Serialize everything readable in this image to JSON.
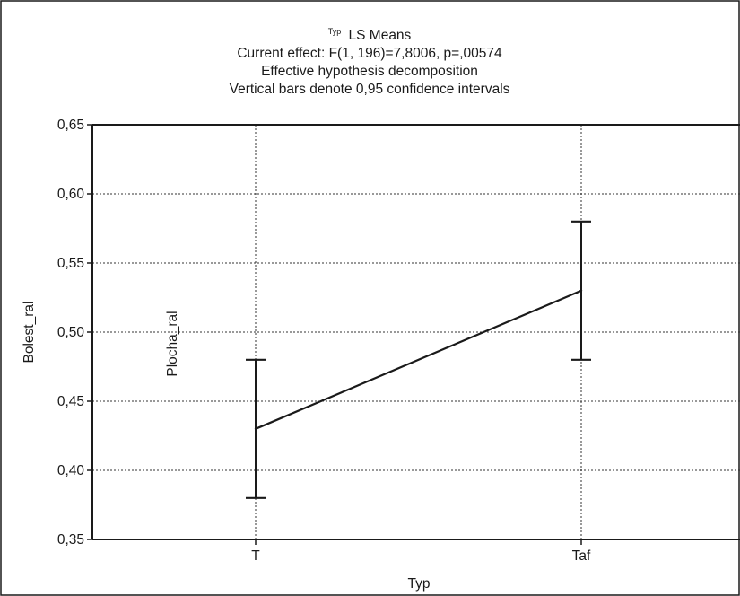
{
  "chart_data": {
    "type": "line",
    "title_superscript": "Typ",
    "title": "LS Means",
    "subtitle_lines": [
      "Current effect: F(1, 196)=7,8006, p=,00574",
      "Effective hypothesis decomposition",
      "Vertical bars denote 0,95 confidence intervals"
    ],
    "xlabel": "Typ",
    "ylabel": "Bolest_ral",
    "inner_label": "Plocha_ral",
    "categories": [
      "T",
      "Taf"
    ],
    "series": [
      {
        "values": [
          0.43,
          0.53
        ],
        "ci_low": [
          0.38,
          0.48
        ],
        "ci_high": [
          0.48,
          0.58
        ]
      }
    ],
    "ylim": [
      0.35,
      0.65
    ],
    "yticks": [
      0.35,
      0.4,
      0.45,
      0.5,
      0.55,
      0.6,
      0.65
    ],
    "ytick_labels": [
      "0,35",
      "0,40",
      "0,45",
      "0,50",
      "0,55",
      "0,60",
      "0,65"
    ],
    "grid": true,
    "line_color": "#1a1a1a"
  }
}
